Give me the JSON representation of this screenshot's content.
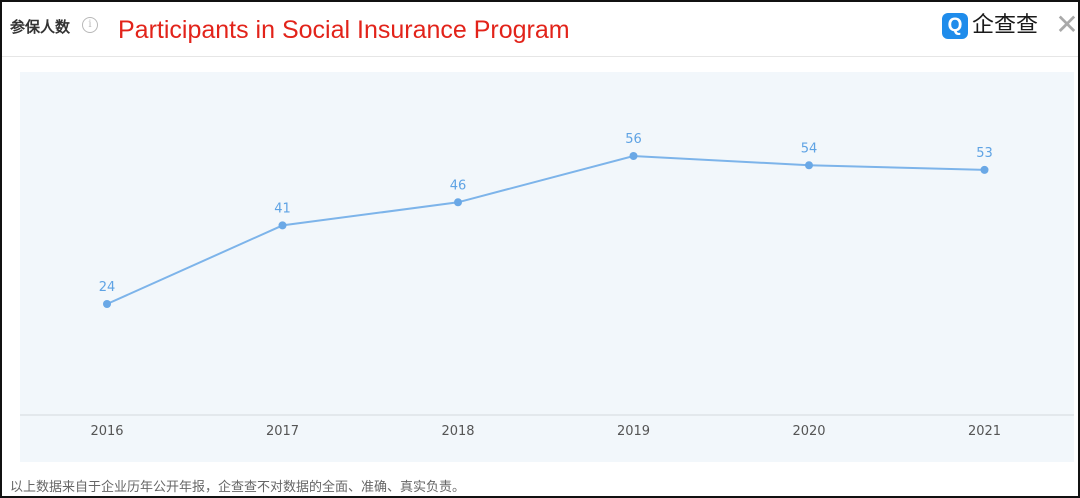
{
  "header": {
    "label": "参保人数",
    "info_icon": "info-icon"
  },
  "title": "Participants in Social Insurance Program",
  "logo": {
    "mark": "Q",
    "text": "企查查"
  },
  "close_icon": "close-icon",
  "footer": "以上数据来自于企业历年公开年报，企查查不对数据的全面、准确、真实负责。",
  "colors": {
    "line": "#7db4ea",
    "point": "#6aa8e6",
    "label": "#5fa3e4",
    "title": "#e2231a",
    "background": "#f2f7fb"
  },
  "chart_data": {
    "type": "line",
    "title": "Participants in Social Insurance Program",
    "categories": [
      "2016",
      "2017",
      "2018",
      "2019",
      "2020",
      "2021"
    ],
    "values": [
      24,
      41,
      46,
      56,
      54,
      53
    ],
    "xlabel": "",
    "ylabel": "",
    "grid": false,
    "legend": "none"
  }
}
